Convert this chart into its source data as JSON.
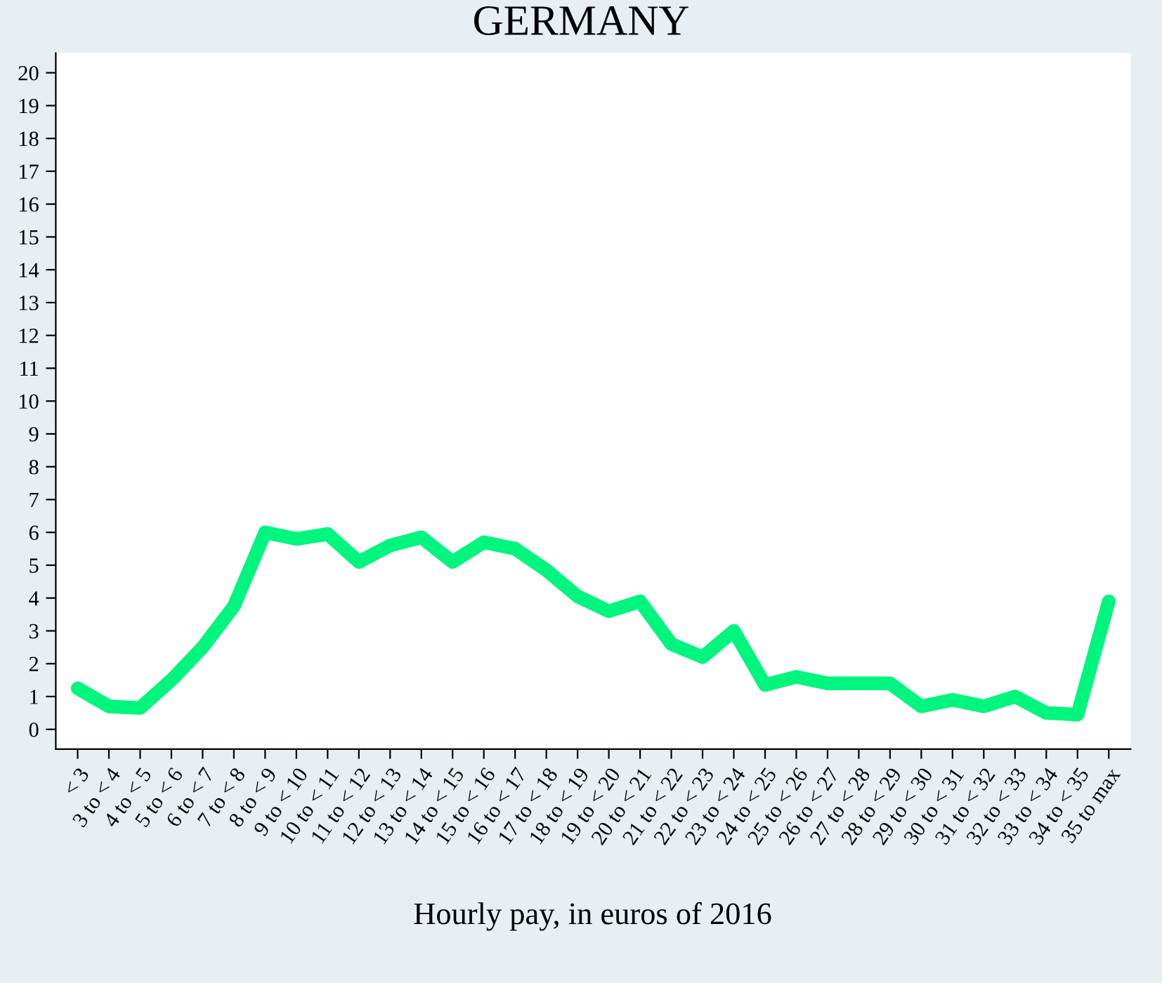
{
  "chart_data": {
    "type": "line",
    "title": "GERMANY",
    "xlabel": "Hourly pay, in euros of 2016",
    "categories": [
      "< 3",
      "3 to < 4",
      "4 to < 5",
      "5 to < 6",
      "6 to < 7",
      "7 to < 8",
      "8 to < 9",
      "9 to < 10",
      "10 to < 11",
      "11 to < 12",
      "12 to < 13",
      "13 to < 14",
      "14 to < 15",
      "15 to < 16",
      "16 to < 17",
      "17 to < 18",
      "18 to < 19",
      "19 to < 20",
      "20 to < 21",
      "21 to < 22",
      "22 to < 23",
      "23 to < 24",
      "24 to < 25",
      "25 to < 26",
      "26 to < 27",
      "27 to < 28",
      "28 to < 29",
      "29 to < 30",
      "30 to < 31",
      "31 to < 32",
      "32 to < 33",
      "33 to < 34",
      "34 to < 35",
      "35 to max"
    ],
    "series": [
      {
        "color": "#00f57f",
        "values": [
          1.25,
          0.7,
          0.65,
          1.5,
          2.5,
          3.75,
          6.0,
          5.8,
          5.95,
          5.1,
          5.6,
          5.85,
          5.1,
          5.7,
          5.5,
          4.85,
          4.05,
          3.6,
          3.9,
          2.6,
          2.2,
          3.0,
          1.35,
          1.6,
          1.4,
          1.4,
          1.4,
          0.7,
          0.9,
          0.7,
          1.0,
          0.5,
          0.45,
          3.9
        ]
      }
    ],
    "ylim": [
      -0.6,
      20.6
    ],
    "yticks": [
      0,
      1,
      2,
      3,
      4,
      5,
      6,
      7,
      8,
      9,
      10,
      11,
      12,
      13,
      14,
      15,
      16,
      17,
      18,
      19,
      20
    ],
    "grid": false,
    "marker": "none",
    "line_style": "solid"
  }
}
